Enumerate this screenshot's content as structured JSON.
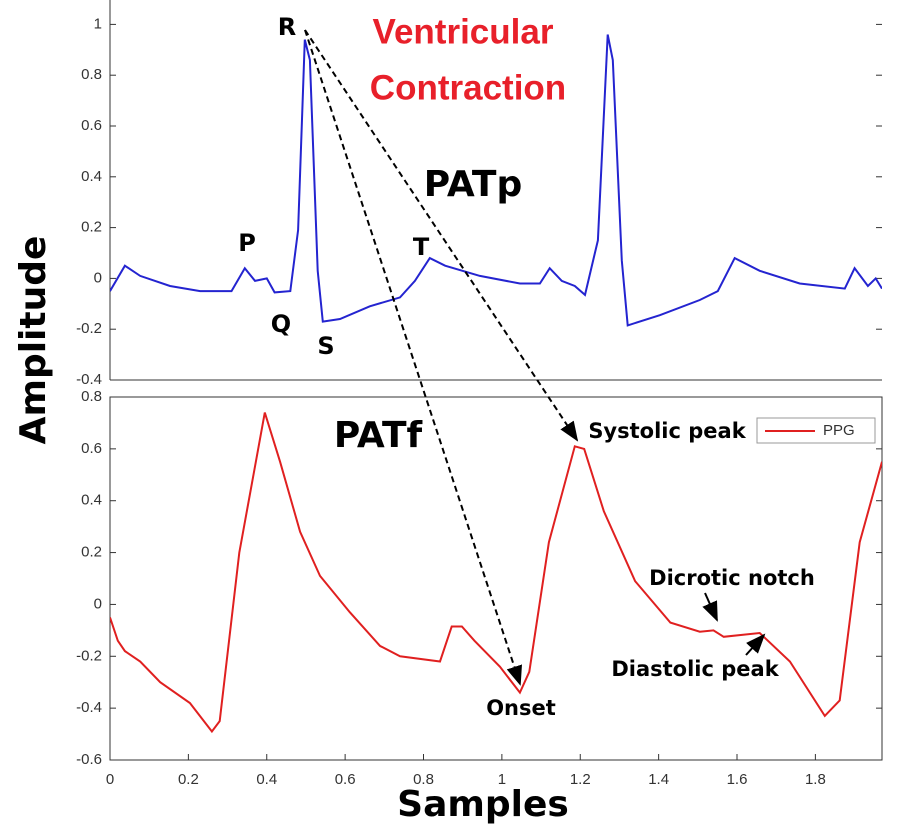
{
  "chart_data": [
    {
      "type": "line",
      "ylabel": "Amplitude",
      "xlim": [
        0,
        1.97
      ],
      "ylim": [
        -0.4,
        1.1
      ],
      "yticks": [
        -0.4,
        -0.2,
        0,
        0.2,
        0.4,
        0.6,
        0.8,
        1
      ],
      "x": [
        0,
        0.038,
        0.077,
        0.153,
        0.23,
        0.31,
        0.344,
        0.37,
        0.4,
        0.42,
        0.46,
        0.48,
        0.497,
        0.51,
        0.53,
        0.543,
        0.587,
        0.663,
        0.74,
        0.778,
        0.816,
        0.855,
        0.944,
        1.046,
        1.097,
        1.122,
        1.153,
        1.186,
        1.212,
        1.245,
        1.27,
        1.283,
        1.306,
        1.321,
        1.403,
        1.505,
        1.551,
        1.594,
        1.658,
        1.76,
        1.875,
        1.9,
        1.934,
        1.954,
        1.97
      ],
      "series": [
        {
          "color": "#2424d0",
          "values": [
            -0.05,
            0.05,
            0.01,
            -0.03,
            -0.05,
            -0.05,
            0.04,
            -0.01,
            0,
            -0.055,
            -0.05,
            0.19,
            0.94,
            0.86,
            0.03,
            -0.17,
            -0.16,
            -0.11,
            -0.075,
            -0.01,
            0.08,
            0.05,
            0.01,
            -0.02,
            -0.02,
            0.04,
            -0.01,
            -0.03,
            -0.065,
            0.15,
            0.96,
            0.86,
            0.07,
            -0.185,
            -0.145,
            -0.085,
            -0.05,
            0.08,
            0.03,
            -0.02,
            -0.04,
            0.04,
            -0.03,
            0,
            -0.04
          ]
        }
      ],
      "annotations": [
        "R",
        "P",
        "Q",
        "S",
        "T",
        "Ventricular",
        "Contraction",
        "PATp"
      ]
    },
    {
      "type": "line",
      "xlabel": "Samples",
      "xlim": [
        0,
        1.97
      ],
      "xticks": [
        0,
        0.2,
        0.4,
        0.6,
        0.8,
        1,
        1.2,
        1.4,
        1.6,
        1.8
      ],
      "ylim": [
        -0.6,
        0.8
      ],
      "yticks": [
        -0.6,
        -0.4,
        -0.2,
        0,
        0.2,
        0.4,
        0.6,
        0.8
      ],
      "legend": "upper right",
      "x": [
        0,
        0.02,
        0.038,
        0.077,
        0.128,
        0.204,
        0.26,
        0.28,
        0.33,
        0.395,
        0.434,
        0.485,
        0.536,
        0.612,
        0.689,
        0.74,
        0.842,
        0.872,
        0.898,
        0.93,
        0.995,
        1.046,
        1.07,
        1.12,
        1.186,
        1.21,
        1.26,
        1.34,
        1.43,
        1.505,
        1.54,
        1.566,
        1.658,
        1.735,
        1.824,
        1.862,
        1.913,
        1.97
      ],
      "series": [
        {
          "name": "PPG",
          "color": "#e02020",
          "values": [
            -0.05,
            -0.14,
            -0.18,
            -0.22,
            -0.3,
            -0.38,
            -0.49,
            -0.45,
            0.2,
            0.74,
            0.55,
            0.28,
            0.11,
            -0.03,
            -0.16,
            -0.2,
            -0.22,
            -0.085,
            -0.085,
            -0.14,
            -0.24,
            -0.34,
            -0.26,
            0.24,
            0.61,
            0.6,
            0.36,
            0.09,
            -0.07,
            -0.105,
            -0.1,
            -0.125,
            -0.11,
            -0.22,
            -0.43,
            -0.37,
            0.24,
            0.55
          ]
        }
      ],
      "annotations": [
        "PATf",
        "Systolic peak",
        "Dicrotic notch",
        "Diastolic peak",
        "Onset"
      ]
    }
  ]
}
